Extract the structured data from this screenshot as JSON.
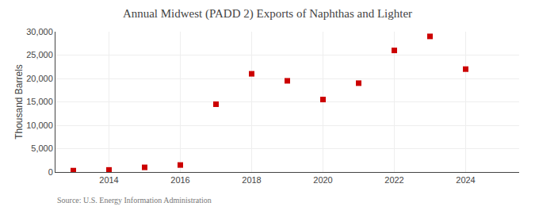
{
  "chart_data": {
    "type": "scatter",
    "title": "Annual Midwest (PADD 2) Exports of Naphthas and Lighter",
    "ylabel": "Thousand Barrels",
    "annotations": [
      "Source: U.S. Energy Information Administration"
    ],
    "x": [
      2013,
      2014,
      2015,
      2016,
      2017,
      2018,
      2019,
      2020,
      2021,
      2022,
      2023,
      2024
    ],
    "values": [
      300,
      450,
      1000,
      1500,
      14500,
      21000,
      19500,
      15500,
      19000,
      26000,
      29000,
      22000
    ],
    "color": "#cc0000",
    "marker": "square",
    "xlim": [
      2012.5,
      2025.5
    ],
    "xticks": [
      2014,
      2016,
      2018,
      2020,
      2022,
      2024
    ],
    "ylim": [
      0,
      30000
    ],
    "yticks": [
      0,
      {
        "value": 5000,
        "label": "5,000"
      },
      {
        "value": 10000,
        "label": "10,000"
      },
      {
        "value": 15000,
        "label": "15,000"
      },
      {
        "value": 20000,
        "label": "20,000"
      },
      {
        "value": 25000,
        "label": "25,000"
      },
      {
        "value": 30000,
        "label": "30,000"
      }
    ],
    "grid": true
  }
}
